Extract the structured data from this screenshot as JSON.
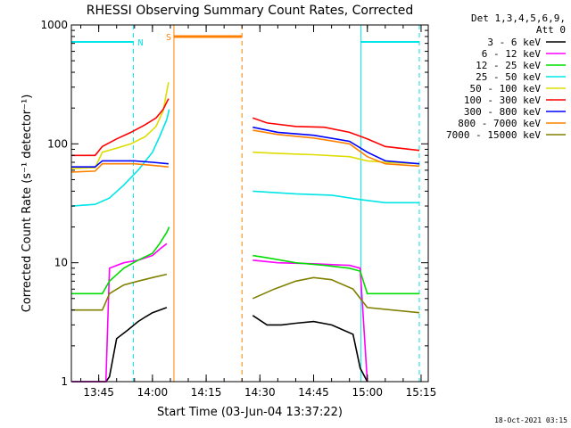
{
  "chart_data": {
    "type": "line",
    "title": "RHESSI Observing Summary Count Rates, Corrected",
    "xlabel": "Start Time (03-Jun-04 13:37:22)",
    "ylabel": "Corrected Count Rate (s⁻¹ detector⁻¹)",
    "y_scale": "log",
    "ylim": [
      1,
      1000
    ],
    "xlim": [
      "13:37:22",
      "15:17:00"
    ],
    "x_ticks": [
      "13:45",
      "14:00",
      "14:15",
      "14:30",
      "14:45",
      "15:00",
      "15:15"
    ],
    "y_ticks": [
      "1",
      "10",
      "100",
      "1000"
    ],
    "grid": false,
    "legend_position": "top-right (outside plot)",
    "legend_header": [
      "Det 1,3,4,5,6,9,",
      "Att 0"
    ],
    "timestamp": "18-Oct-2021 03:15",
    "markers": [
      {
        "label": "N",
        "color": "#00e5e5",
        "type": "night",
        "segments": [
          [
            "13:37:22",
            "13:54:40"
          ],
          [
            "14:58:10",
            "15:14:30"
          ]
        ]
      },
      {
        "label": "S",
        "color": "#ff8000",
        "type": "saa",
        "segments": [
          [
            "14:06:00",
            "14:25:00"
          ]
        ]
      }
    ],
    "series": [
      {
        "name": "3 - 6 keV",
        "color": "#000000",
        "points": [
          [
            "13:37:30",
            0
          ],
          [
            "13:47:00",
            0
          ],
          [
            "13:48:00",
            1.1
          ],
          [
            "13:50:00",
            2.3
          ],
          [
            "13:53:00",
            2.7
          ],
          [
            "13:56:00",
            3.2
          ],
          [
            "13:58:00",
            3.5
          ],
          [
            "14:00:00",
            3.8
          ],
          [
            "14:04:00",
            4.2
          ],
          null,
          [
            "14:28:00",
            3.6
          ],
          [
            "14:32:00",
            3.0
          ],
          [
            "14:36:00",
            3.0
          ],
          [
            "14:40:00",
            3.1
          ],
          [
            "14:45:00",
            3.2
          ],
          [
            "14:50:00",
            3.0
          ],
          [
            "14:56:00",
            2.5
          ],
          [
            "14:58:00",
            1.3
          ],
          [
            "15:00:00",
            0
          ]
        ]
      },
      {
        "name": "6 - 12 keV",
        "color": "#ff00ff",
        "points": [
          [
            "13:37:30",
            0
          ],
          [
            "13:47:00",
            0
          ],
          [
            "13:48:00",
            9.0
          ],
          [
            "13:52:00",
            10.0
          ],
          [
            "13:56:00",
            10.5
          ],
          [
            "14:00:00",
            11.5
          ],
          [
            "14:02:00",
            13.0
          ],
          [
            "14:04:00",
            14.5
          ],
          null,
          [
            "14:28:00",
            10.5
          ],
          [
            "14:35:00",
            10.0
          ],
          [
            "14:45:00",
            9.8
          ],
          [
            "14:55:00",
            9.5
          ],
          [
            "14:58:00",
            9.0
          ],
          [
            "15:00:00",
            0
          ]
        ]
      },
      {
        "name": "12 - 25 keV",
        "color": "#00dd00",
        "points": [
          [
            "13:37:30",
            5.5
          ],
          [
            "13:46:00",
            5.5
          ],
          [
            "13:48:00",
            7.0
          ],
          [
            "13:52:00",
            9.0
          ],
          [
            "13:56:00",
            10.5
          ],
          [
            "14:00:00",
            12.0
          ],
          [
            "14:02:00",
            14.5
          ],
          [
            "14:04:00",
            18.0
          ],
          [
            "14:04:40",
            20.0
          ],
          null,
          [
            "14:28:00",
            11.5
          ],
          [
            "14:32:00",
            11.0
          ],
          [
            "14:40:00",
            10.0
          ],
          [
            "14:48:00",
            9.5
          ],
          [
            "14:55:00",
            9.0
          ],
          [
            "14:58:00",
            8.5
          ],
          [
            "15:00:00",
            5.5
          ],
          [
            "15:14:30",
            5.5
          ]
        ]
      },
      {
        "name": "25 - 50 keV",
        "color": "#00e5e5",
        "points": [
          [
            "13:37:30",
            30
          ],
          [
            "13:44:00",
            31
          ],
          [
            "13:48:00",
            35
          ],
          [
            "13:52:00",
            45
          ],
          [
            "13:56:00",
            60
          ],
          [
            "14:00:00",
            85
          ],
          [
            "14:02:00",
            115
          ],
          [
            "14:04:00",
            160
          ],
          [
            "14:04:40",
            195
          ],
          null,
          [
            "14:28:00",
            40
          ],
          [
            "14:40:00",
            38
          ],
          [
            "14:50:00",
            37
          ],
          [
            "14:58:00",
            34
          ],
          [
            "15:05:00",
            32
          ],
          [
            "15:14:30",
            32
          ]
        ]
      },
      {
        "name": "50 - 100 keV",
        "color": "#dddd00",
        "points": [
          [
            "13:37:30",
            62
          ],
          [
            "13:44:00",
            63
          ],
          [
            "13:46:00",
            85
          ],
          [
            "13:50:00",
            92
          ],
          [
            "13:54:00",
            100
          ],
          [
            "13:58:00",
            115
          ],
          [
            "14:01:00",
            140
          ],
          [
            "14:03:00",
            190
          ],
          [
            "14:04:30",
            330
          ],
          null,
          [
            "14:28:00",
            85
          ],
          [
            "14:35:00",
            83
          ],
          [
            "14:45:00",
            81
          ],
          [
            "14:55:00",
            78
          ],
          [
            "15:00:00",
            72
          ],
          [
            "15:05:00",
            70
          ],
          [
            "15:14:30",
            68
          ]
        ]
      },
      {
        "name": "100 - 300 keV",
        "color": "#ff0000",
        "points": [
          [
            "13:37:30",
            80
          ],
          [
            "13:44:00",
            80
          ],
          [
            "13:46:00",
            95
          ],
          [
            "13:50:00",
            110
          ],
          [
            "13:54:00",
            125
          ],
          [
            "13:58:00",
            145
          ],
          [
            "14:01:00",
            165
          ],
          [
            "14:03:00",
            195
          ],
          [
            "14:04:30",
            240
          ],
          null,
          [
            "14:28:00",
            165
          ],
          [
            "14:32:00",
            150
          ],
          [
            "14:40:00",
            140
          ],
          [
            "14:48:00",
            138
          ],
          [
            "14:55:00",
            125
          ],
          [
            "15:00:00",
            110
          ],
          [
            "15:05:00",
            95
          ],
          [
            "15:14:30",
            88
          ]
        ]
      },
      {
        "name": "300 - 800 keV",
        "color": "#0000ff",
        "points": [
          [
            "13:37:30",
            64
          ],
          [
            "13:44:00",
            64
          ],
          [
            "13:46:00",
            72
          ],
          [
            "13:55:00",
            72
          ],
          [
            "14:00:00",
            70
          ],
          [
            "14:04:30",
            68
          ],
          null,
          [
            "14:28:00",
            138
          ],
          [
            "14:35:00",
            125
          ],
          [
            "14:45:00",
            118
          ],
          [
            "14:55:00",
            105
          ],
          [
            "15:00:00",
            85
          ],
          [
            "15:05:00",
            72
          ],
          [
            "15:14:30",
            68
          ]
        ]
      },
      {
        "name": "800 - 7000 keV",
        "color": "#ff8000",
        "points": [
          [
            "13:37:30",
            58
          ],
          [
            "13:44:00",
            59
          ],
          [
            "13:46:00",
            68
          ],
          [
            "13:55:00",
            68
          ],
          [
            "14:00:00",
            66
          ],
          [
            "14:04:30",
            64
          ],
          null,
          [
            "14:28:00",
            130
          ],
          [
            "14:35:00",
            120
          ],
          [
            "14:45:00",
            112
          ],
          [
            "14:55:00",
            100
          ],
          [
            "15:00:00",
            78
          ],
          [
            "15:05:00",
            68
          ],
          [
            "15:14:30",
            65
          ]
        ]
      },
      {
        "name": "7000 - 15000 keV",
        "color": "#808000",
        "points": [
          [
            "13:37:30",
            4.0
          ],
          [
            "13:46:00",
            4.0
          ],
          [
            "13:48:00",
            5.5
          ],
          [
            "13:52:00",
            6.5
          ],
          [
            "13:56:00",
            7.0
          ],
          [
            "14:00:00",
            7.5
          ],
          [
            "14:04:00",
            8.0
          ],
          null,
          [
            "14:28:00",
            5.0
          ],
          [
            "14:34:00",
            6.0
          ],
          [
            "14:40:00",
            7.0
          ],
          [
            "14:45:00",
            7.5
          ],
          [
            "14:50:00",
            7.2
          ],
          [
            "14:56:00",
            6.0
          ],
          [
            "15:00:00",
            4.2
          ],
          [
            "15:14:30",
            3.8
          ]
        ]
      }
    ]
  }
}
